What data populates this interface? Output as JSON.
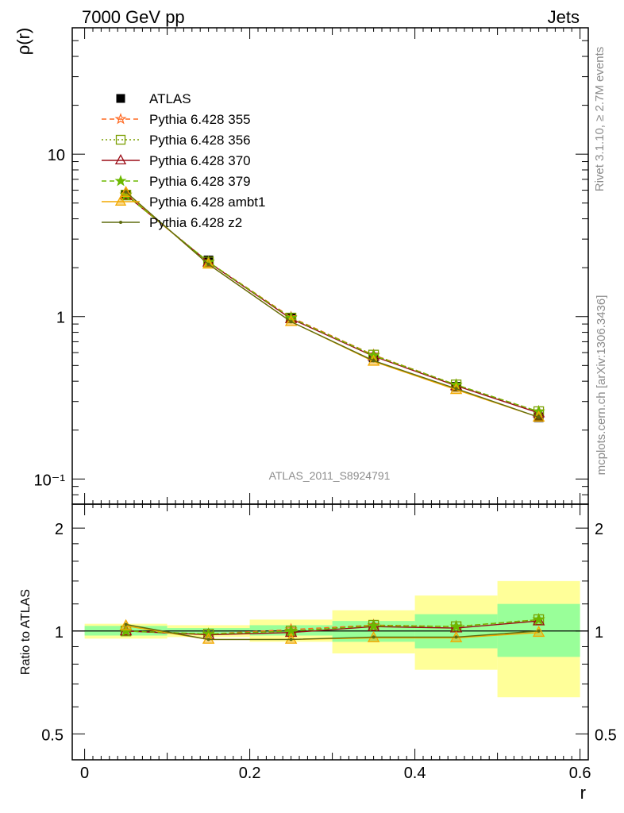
{
  "header": {
    "left": "7000 GeV pp",
    "right": "Jets"
  },
  "side": {
    "rivet": "Rivet 3.1.10, ≥ 2.7M events",
    "mcplots": "mcplots.cern.ch [arXiv:1306.3436]"
  },
  "watermark": "ATLAS_2011_S8924791",
  "colors": {
    "atlas": "#000000",
    "p355": "#ff6820",
    "p356": "#7a9e00",
    "p370": "#9b0d17",
    "p379": "#6cb800",
    "ambt1": "#f2a900",
    "z2": "#5e6b0f",
    "band_inner": "#99ff99",
    "band_outer": "#ffff99"
  },
  "chart_data": [
    {
      "type": "line",
      "panel": "main",
      "ylabel": "ρ(r)",
      "yscale": "log",
      "ylim": [
        0.07,
        60
      ],
      "xlim": [
        -0.015,
        0.61
      ],
      "ytick_labels": [
        "10⁻¹",
        "1",
        "10"
      ],
      "x": [
        0.05,
        0.15,
        0.25,
        0.35,
        0.45,
        0.55
      ],
      "legend_position": "upper-left",
      "series": [
        {
          "name": "ATLAS",
          "marker": "square",
          "values": [
            5.6,
            2.22,
            0.98,
            0.56,
            0.37,
            0.24
          ]
        },
        {
          "name": "Pythia 6.428 355",
          "marker": "star-open",
          "linestyle": "dashed",
          "values": [
            5.62,
            2.17,
            0.99,
            0.58,
            0.38,
            0.26
          ]
        },
        {
          "name": "Pythia 6.428 356",
          "marker": "square-open",
          "linestyle": "dotted",
          "values": [
            5.6,
            2.17,
            0.98,
            0.58,
            0.38,
            0.26
          ]
        },
        {
          "name": "Pythia 6.428 370",
          "marker": "triangle-open",
          "linestyle": "solid",
          "values": [
            5.62,
            2.16,
            0.97,
            0.57,
            0.375,
            0.255
          ]
        },
        {
          "name": "Pythia 6.428 379",
          "marker": "star",
          "linestyle": "dashed",
          "values": [
            5.61,
            2.17,
            0.98,
            0.575,
            0.38,
            0.26
          ]
        },
        {
          "name": "Pythia 6.428 ambt1",
          "marker": "triangle-filled",
          "linestyle": "solid",
          "values": [
            5.8,
            2.1,
            0.93,
            0.53,
            0.355,
            0.24
          ]
        },
        {
          "name": "Pythia 6.428 z2",
          "marker": "dot",
          "linestyle": "solid",
          "values": [
            5.85,
            2.1,
            0.93,
            0.535,
            0.36,
            0.24
          ]
        }
      ]
    },
    {
      "type": "line",
      "panel": "ratio",
      "ylabel": "Ratio to ATLAS",
      "xlabel": "r",
      "yscale": "log",
      "ylim": [
        0.42,
        2.35
      ],
      "xlim": [
        -0.015,
        0.61
      ],
      "ytick_labels": [
        "0.5",
        "1",
        "2"
      ],
      "xtick_labels": [
        "0",
        "0.2",
        "0.4",
        "0.6"
      ],
      "x": [
        0.05,
        0.15,
        0.25,
        0.35,
        0.45,
        0.55
      ],
      "bands": {
        "bin_edges": [
          0.0,
          0.1,
          0.2,
          0.3,
          0.4,
          0.5,
          0.6
        ],
        "inner": [
          [
            0.97,
            1.035
          ],
          [
            0.98,
            1.02
          ],
          [
            0.97,
            1.04
          ],
          [
            0.93,
            1.07
          ],
          [
            0.89,
            1.12
          ],
          [
            0.84,
            1.2
          ]
        ],
        "outer": [
          [
            0.95,
            1.05
          ],
          [
            0.96,
            1.04
          ],
          [
            0.93,
            1.08
          ],
          [
            0.86,
            1.15
          ],
          [
            0.77,
            1.27
          ],
          [
            0.64,
            1.4
          ]
        ]
      },
      "series": [
        {
          "name": "Pythia 6.428 355",
          "marker": "star-open",
          "values": [
            1.0,
            0.98,
            1.01,
            1.04,
            1.03,
            1.08
          ]
        },
        {
          "name": "Pythia 6.428 356",
          "marker": "square-open",
          "values": [
            1.0,
            0.98,
            1.0,
            1.04,
            1.03,
            1.08
          ]
        },
        {
          "name": "Pythia 6.428 370",
          "marker": "triangle-open",
          "values": [
            1.0,
            0.975,
            0.99,
            1.03,
            1.02,
            1.07
          ]
        },
        {
          "name": "Pythia 6.428 379",
          "marker": "star",
          "values": [
            1.0,
            0.98,
            1.0,
            1.035,
            1.03,
            1.08
          ]
        },
        {
          "name": "Pythia 6.428 ambt1",
          "marker": "triangle-filled",
          "values": [
            1.035,
            0.945,
            0.945,
            0.955,
            0.955,
            0.99
          ]
        },
        {
          "name": "Pythia 6.428 z2",
          "marker": "dot",
          "values": [
            1.045,
            0.945,
            0.945,
            0.96,
            0.96,
            1.0
          ]
        }
      ]
    }
  ]
}
